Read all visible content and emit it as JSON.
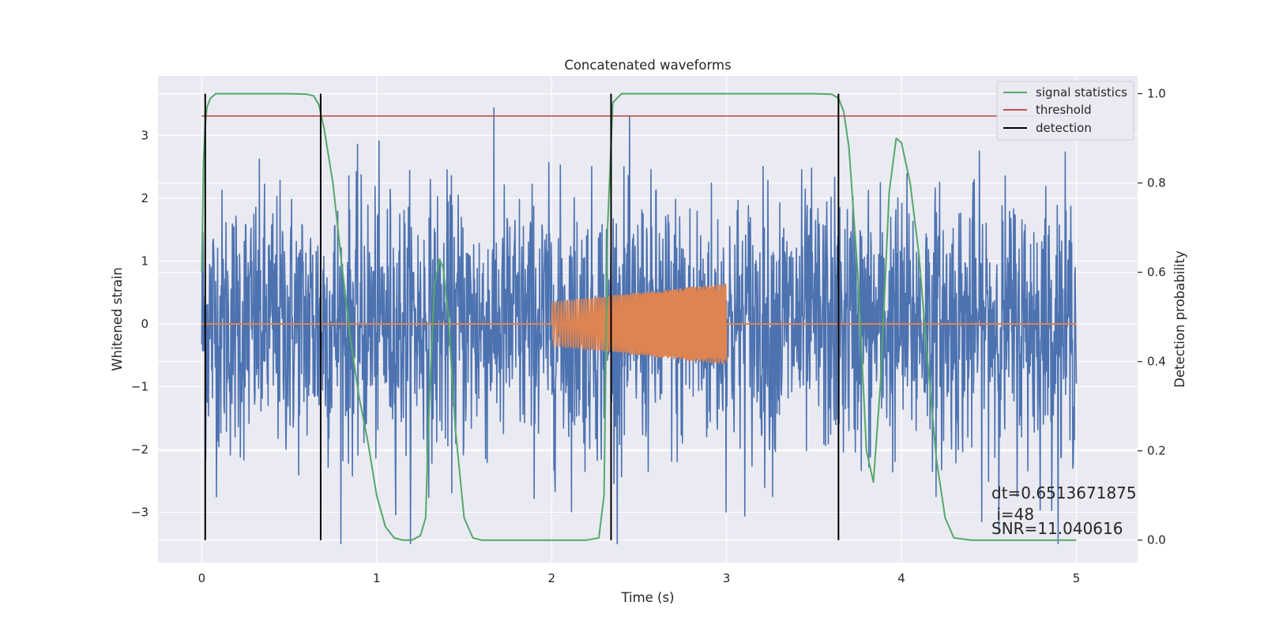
{
  "chart_data": {
    "type": "line",
    "title": "Concatenated waveforms",
    "xlabel": "Time (s)",
    "ylabel": "Whitened strain",
    "ylabel_right": "Detection probability",
    "xlim": [
      -0.25,
      5.35
    ],
    "ylim": [
      -3.8,
      3.95
    ],
    "ylim_right": [
      -0.05,
      1.04
    ],
    "xticks": [
      0,
      1,
      2,
      3,
      4,
      5
    ],
    "yticks": [
      -3,
      -2,
      -1,
      0,
      1,
      2,
      3
    ],
    "yticks_right": [
      0.0,
      0.2,
      0.4,
      0.6,
      0.8,
      1.0
    ],
    "xtick_labels": [
      "0",
      "1",
      "2",
      "3",
      "4",
      "5"
    ],
    "ytick_labels": [
      "−3",
      "−2",
      "−1",
      "0",
      "1",
      "2",
      "3"
    ],
    "ytick_right_labels": [
      "0.0",
      "0.2",
      "0.4",
      "0.6",
      "0.8",
      "1.0"
    ],
    "grid": true,
    "background": "#eaeaf2",
    "legend_position": "top-right",
    "series": [
      {
        "name": "",
        "axis": "left",
        "kind": "whitened-strain noise",
        "color": "#4c72b0",
        "x_range": [
          0,
          5
        ],
        "amplitude_envelope": [
          -3.5,
          3.6
        ]
      },
      {
        "name": "",
        "axis": "left",
        "kind": "injected chirp",
        "color": "#dd8452",
        "baseline": 0,
        "x_range": [
          2.0,
          3.0
        ],
        "amplitude_start": 0.35,
        "amplitude_end": 0.65
      },
      {
        "name": "signal statistics",
        "axis": "right",
        "color": "#55a868",
        "x": [
          0,
          0.01,
          0.02,
          0.03,
          0.05,
          0.08,
          0.15,
          0.3,
          0.5,
          0.6,
          0.64,
          0.67,
          0.7,
          0.75,
          0.8,
          0.85,
          0.9,
          0.95,
          1.0,
          1.05,
          1.1,
          1.15,
          1.2,
          1.25,
          1.28,
          1.3,
          1.33,
          1.36,
          1.38,
          1.41,
          1.45,
          1.5,
          1.55,
          1.6,
          2.0,
          2.2,
          2.27,
          2.3,
          2.32,
          2.35,
          2.4,
          2.5,
          3.0,
          3.5,
          3.6,
          3.64,
          3.67,
          3.7,
          3.75,
          3.8,
          3.84,
          3.88,
          3.93,
          3.97,
          4.0,
          4.05,
          4.1,
          4.15,
          4.2,
          4.25,
          4.3,
          4.4,
          5.0
        ],
        "y": [
          0.6,
          0.85,
          0.93,
          0.97,
          0.99,
          1.0,
          1.0,
          1.0,
          1.0,
          0.999,
          0.995,
          0.975,
          0.92,
          0.8,
          0.62,
          0.45,
          0.32,
          0.22,
          0.1,
          0.03,
          0.005,
          0.0,
          0.0,
          0.01,
          0.05,
          0.3,
          0.57,
          0.63,
          0.61,
          0.5,
          0.25,
          0.05,
          0.005,
          0.0,
          0.0,
          0.0,
          0.005,
          0.1,
          0.7,
          0.98,
          1.0,
          1.0,
          1.0,
          1.0,
          0.999,
          0.99,
          0.96,
          0.88,
          0.6,
          0.2,
          0.13,
          0.35,
          0.78,
          0.9,
          0.89,
          0.8,
          0.64,
          0.4,
          0.18,
          0.05,
          0.005,
          0.0,
          0.0
        ]
      },
      {
        "name": "threshold",
        "axis": "right",
        "color": "#c44e52",
        "x": [
          0,
          5
        ],
        "y": [
          0.95,
          0.95
        ]
      },
      {
        "name": "detection",
        "axis": "right",
        "color": "#000000",
        "vlines_x": [
          0.02,
          0.68,
          2.34,
          3.64
        ],
        "y_range": [
          0.0,
          1.0
        ]
      }
    ],
    "annotations": {
      "dt": "dt=0.6513671875",
      "i": " i=48",
      "snr": "SNR=11.040616"
    }
  }
}
